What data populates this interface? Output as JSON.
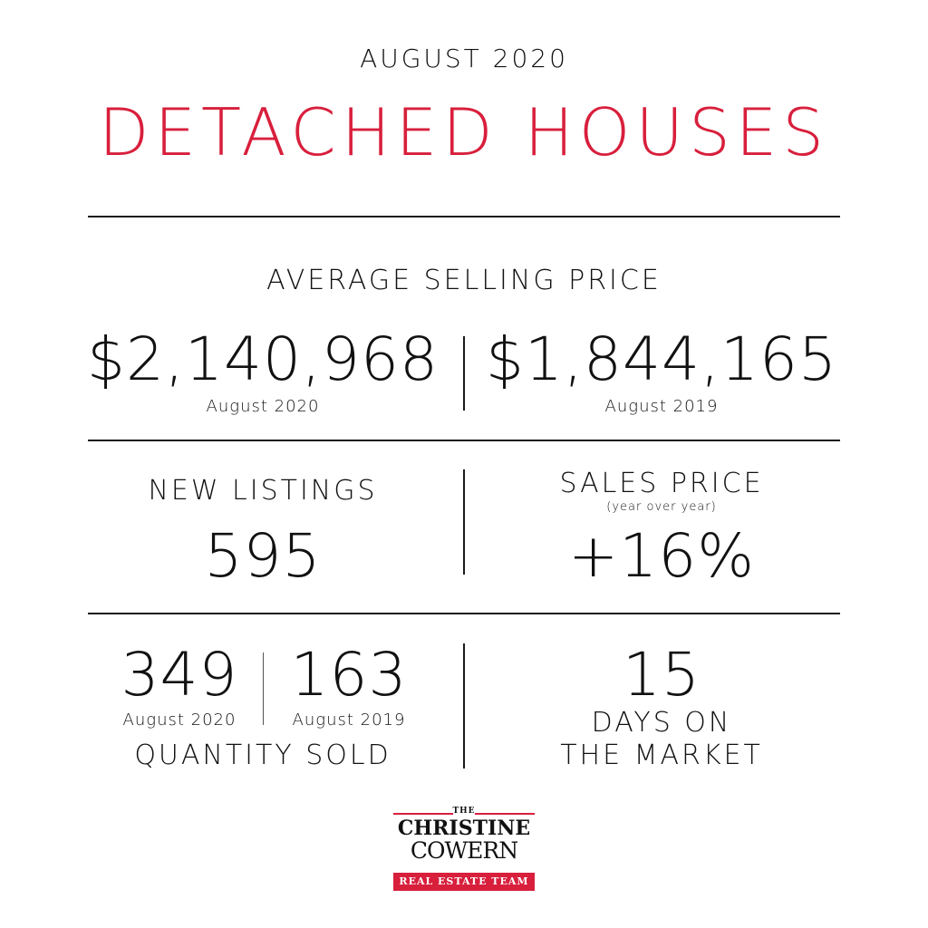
{
  "header": {
    "period": "AUGUST 2020",
    "title": "DETACHED HOUSES"
  },
  "avg_price": {
    "label": "AVERAGE SELLING PRICE",
    "current_value": "$2,140,968",
    "current_period": "August 2020",
    "previous_value": "$1,844,165",
    "previous_period": "August 2019"
  },
  "new_listings": {
    "label": "NEW LISTINGS",
    "value": "595"
  },
  "sales_price": {
    "label": "SALES PRICE",
    "sublabel": "(year over year)",
    "value": "+16%"
  },
  "quantity_sold": {
    "label": "QUANTITY SOLD",
    "current_value": "349",
    "current_period": "August 2020",
    "previous_value": "163",
    "previous_period": "August 2019"
  },
  "days_on_market": {
    "value": "15",
    "label_line1": "DAYS ON",
    "label_line2": "THE MARKET"
  },
  "logo": {
    "the": "THE",
    "line1": "CHRISTINE",
    "line2": "COWERN",
    "band": "REAL ESTATE TEAM"
  },
  "colors": {
    "accent": "#d81f3c",
    "text": "#111111",
    "background": "#ffffff"
  }
}
